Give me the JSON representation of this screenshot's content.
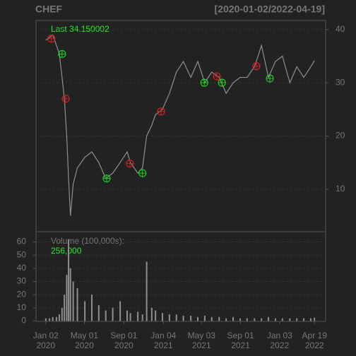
{
  "chart_data": {
    "type": "line",
    "title": "CHEF",
    "subtitle": "[2020-01-02/2022-04-19]",
    "annotation": "Last 34.150002",
    "x": [
      0,
      8,
      15,
      23,
      29,
      35,
      40,
      45,
      49,
      53,
      59,
      68,
      84,
      99,
      114,
      129,
      144,
      160,
      175,
      182,
      198,
      208,
      217,
      228,
      236,
      251,
      266,
      281,
      296,
      312,
      327,
      342,
      357,
      373,
      388,
      403,
      418,
      433,
      449,
      464,
      479,
      494,
      509,
      525,
      540,
      555,
      570,
      578
    ],
    "series": [
      {
        "color": "#8f8f8f",
        "values": [
          38,
          38.5,
          39,
          37,
          35.5,
          31,
          27,
          20,
          12,
          5,
          11,
          14,
          16,
          17,
          15,
          12,
          13,
          15,
          17,
          15,
          13,
          14,
          20,
          22,
          24,
          25,
          28,
          32,
          34,
          31,
          34,
          30,
          32,
          31,
          28,
          30,
          31,
          31,
          33,
          37,
          31,
          34,
          35,
          30,
          33,
          31,
          33,
          34.150002
        ]
      }
    ],
    "signals": [
      {
        "color": "#22cc22",
        "x": [
          35,
          131,
          208,
          341,
          379,
          482
        ],
        "y": [
          35.4,
          12,
          13,
          30,
          30,
          30.8
        ]
      },
      {
        "color": "#cc2222",
        "x": [
          12,
          43,
          181,
          248,
          368,
          453
        ],
        "y": [
          38.3,
          27,
          14.8,
          24.6,
          31.2,
          33.1
        ]
      }
    ],
    "xlim": [
      -21,
      602
    ],
    "xticks": [
      {
        "value": 0,
        "label": [
          "Jan 02",
          "2020"
        ]
      },
      {
        "value": 83,
        "label": [
          "May 01",
          "2020"
        ]
      },
      {
        "value": 168,
        "label": [
          "Sep 01",
          "2020"
        ]
      },
      {
        "value": 253,
        "label": [
          "Jan 04",
          "2021"
        ]
      },
      {
        "value": 335,
        "label": [
          "May 03",
          "2021"
        ]
      },
      {
        "value": 419,
        "label": [
          "Sep 01",
          "2021"
        ]
      },
      {
        "value": 503,
        "label": [
          "Jan 03",
          "2022"
        ]
      },
      {
        "value": 578,
        "label": [
          "Apr 19",
          "2022"
        ]
      }
    ],
    "ylim": [
      2,
      41.7
    ],
    "yticks": [
      10,
      20,
      30,
      40
    ],
    "grid": true,
    "volume": {
      "label": "Volume (100,000s):",
      "last_label": "256,000",
      "color": "#8f8f8f",
      "values": [
        2,
        2,
        3,
        3,
        5,
        10,
        20,
        35,
        62,
        40,
        30,
        25,
        15,
        20,
        12,
        8,
        10,
        15,
        8,
        6,
        7,
        5,
        45,
        10,
        8,
        6,
        5,
        5,
        4,
        4,
        3,
        4,
        3,
        3,
        2,
        3,
        2,
        2,
        2,
        2,
        3,
        2,
        2,
        2,
        2,
        2,
        2,
        2.56
      ],
      "ylim": [
        -0.3,
        67.8
      ],
      "yticks": [
        0,
        10,
        20,
        30,
        40,
        50,
        60
      ]
    }
  }
}
